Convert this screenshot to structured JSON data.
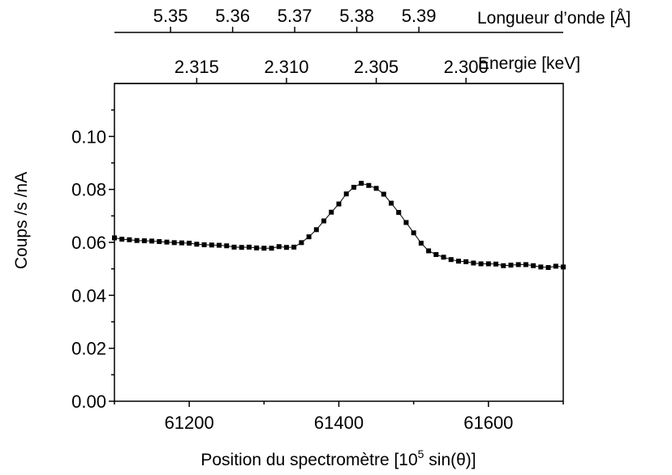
{
  "chart_data": {
    "type": "scatter",
    "xlabel": "Position du spectromètre [10",
    "xlabel_exponent": "5",
    "xlabel_tail": " sin(θ)]",
    "ylabel": "Coups /s /nA",
    "xlim": [
      61100,
      61700
    ],
    "ylim": [
      0,
      0.12
    ],
    "x_ticks": [
      61200,
      61400,
      61600
    ],
    "x_tick_labels": [
      "61200",
      "61400",
      "61600"
    ],
    "y_ticks": [
      0.0,
      0.02,
      0.04,
      0.06,
      0.08,
      0.1
    ],
    "y_tick_labels": [
      "0.00",
      "0.02",
      "0.04",
      "0.06",
      "0.08",
      "0.10"
    ],
    "secondary_axes": [
      {
        "label": "Longueur d’onde [Å]",
        "tick_labels": [
          "5.35",
          "5.36",
          "5.37",
          "5.38",
          "5.39"
        ],
        "tick_positions_x": [
          61175,
          61258,
          61341,
          61424,
          61507
        ]
      },
      {
        "label": "Energie [keV]",
        "tick_labels": [
          "2.315",
          "2.310",
          "2.305",
          "2.300"
        ],
        "tick_positions_x": [
          61210,
          61330,
          61450,
          61570
        ]
      }
    ],
    "series": [
      {
        "marker": "square",
        "line": true,
        "x": [
          61100,
          61110,
          61120,
          61130,
          61140,
          61150,
          61160,
          61170,
          61180,
          61190,
          61200,
          61210,
          61220,
          61230,
          61240,
          61250,
          61260,
          61270,
          61280,
          61290,
          61300,
          61310,
          61320,
          61330,
          61340,
          61350,
          61360,
          61370,
          61380,
          61390,
          61400,
          61410,
          61420,
          61430,
          61440,
          61450,
          61460,
          61470,
          61480,
          61490,
          61500,
          61510,
          61520,
          61530,
          61540,
          61550,
          61560,
          61570,
          61580,
          61590,
          61600,
          61610,
          61620,
          61630,
          61640,
          61650,
          61660,
          61670,
          61680,
          61690,
          61700
        ],
        "y": [
          0.0617,
          0.0612,
          0.061,
          0.0607,
          0.0606,
          0.0605,
          0.0603,
          0.0601,
          0.0599,
          0.0598,
          0.0597,
          0.0593,
          0.0591,
          0.059,
          0.0589,
          0.0587,
          0.0582,
          0.0581,
          0.0582,
          0.0579,
          0.0578,
          0.0578,
          0.0584,
          0.0581,
          0.0582,
          0.0599,
          0.0621,
          0.0648,
          0.0681,
          0.0714,
          0.0745,
          0.0783,
          0.0808,
          0.0823,
          0.0815,
          0.0804,
          0.0782,
          0.0748,
          0.0713,
          0.0675,
          0.0636,
          0.0597,
          0.0568,
          0.0554,
          0.0544,
          0.0535,
          0.0529,
          0.0527,
          0.0522,
          0.0519,
          0.0519,
          0.0518,
          0.0512,
          0.0514,
          0.0516,
          0.0516,
          0.0512,
          0.0507,
          0.0505,
          0.051,
          0.0507
        ]
      }
    ],
    "grid": false
  }
}
